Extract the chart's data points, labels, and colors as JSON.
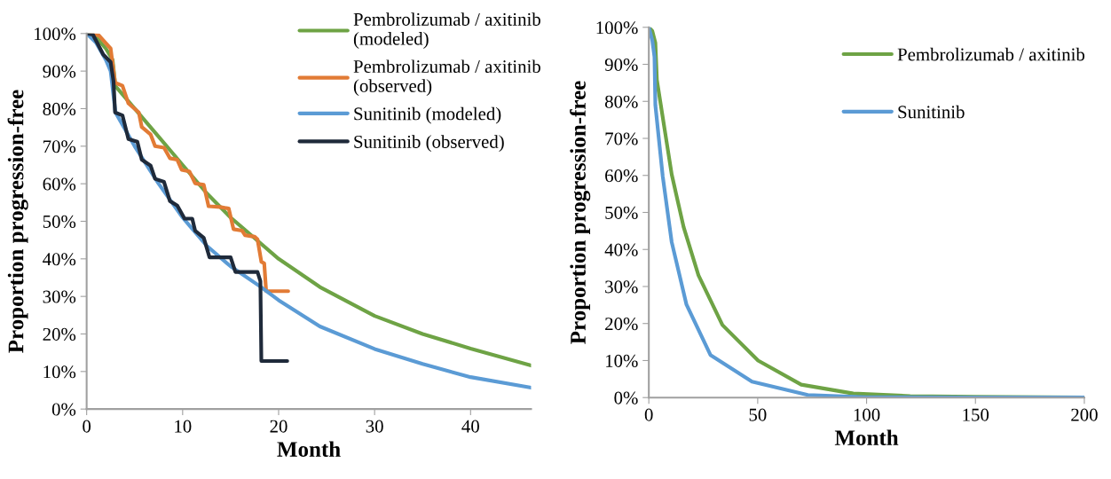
{
  "chart_data": [
    {
      "type": "line",
      "xlabel": "Month",
      "ylabel": "Proportion progression-free",
      "xlim": [
        0,
        46.3
      ],
      "xticks": [
        0,
        10,
        20,
        30,
        40
      ],
      "ylim": [
        0,
        100
      ],
      "yticks": [
        {
          "value": 0,
          "label": "0%"
        },
        {
          "value": 10,
          "label": "10%"
        },
        {
          "value": 20,
          "label": "20%"
        },
        {
          "value": 30,
          "label": "30%"
        },
        {
          "value": 40,
          "label": "40%"
        },
        {
          "value": 50,
          "label": "50%"
        },
        {
          "value": 60,
          "label": "60%"
        },
        {
          "value": 70,
          "label": "70%"
        },
        {
          "value": 80,
          "label": "80%"
        },
        {
          "value": 90,
          "label": "90%"
        },
        {
          "value": 100,
          "label": "100%"
        }
      ],
      "grid": false,
      "legend": "top right",
      "marker": "none",
      "line_style": "solid",
      "series": [
        {
          "name": "Pembrolizumab / axitinib\n(modeled)",
          "color": "#6ea345",
          "x": [
            0,
            1,
            2,
            2.7,
            3,
            5,
            7.5,
            10,
            12.5,
            15,
            17.5,
            20,
            24.3,
            30,
            35,
            40,
            46.3
          ],
          "values": [
            100,
            99,
            96,
            93,
            86,
            80,
            72.5,
            65,
            57.5,
            51,
            45.5,
            40,
            32.5,
            24.8,
            20,
            16.1,
            11.6
          ]
        },
        {
          "name": "Pembrolizumab / axitinib\n(observed)",
          "color": "#e27b35",
          "x": [
            0,
            1.27,
            2.5,
            2.96,
            3.73,
            4.35,
            5.43,
            5.74,
            6.67,
            7.13,
            8.06,
            8.67,
            9.44,
            9.9,
            10.7,
            11.3,
            12.2,
            12.7,
            13.9,
            14.8,
            15.3,
            16.2,
            16.5,
            17.5,
            17.8,
            18.2,
            18.5,
            18.7,
            21.0
          ],
          "values": [
            100,
            99.5,
            96,
            86.9,
            86.1,
            81.4,
            79,
            75.1,
            73.1,
            70,
            69.6,
            66.8,
            66.4,
            63.7,
            63.3,
            60.1,
            59.7,
            54,
            53.8,
            53.4,
            47.9,
            47.5,
            46.3,
            45.9,
            45.2,
            39.2,
            38.8,
            31.4,
            31.4
          ]
        },
        {
          "name": "Sunitinib (modeled)",
          "color": "#5b9bd5",
          "x": [
            0,
            1,
            2,
            2.5,
            3,
            5,
            7.5,
            10,
            12.5,
            15,
            18.1,
            20,
            24.3,
            30,
            35,
            40,
            46.3
          ],
          "values": [
            100,
            97.5,
            93,
            90,
            79,
            70,
            60,
            51,
            43.5,
            38,
            32.6,
            29,
            22,
            16,
            12,
            8.5,
            5.7
          ]
        },
        {
          "name": "Sunitinib (observed)",
          "color": "#1f2a3a",
          "x": [
            0,
            0.65,
            1.73,
            2.5,
            2.8,
            2.96,
            3.73,
            4.35,
            5.28,
            5.74,
            6.67,
            7.13,
            8.06,
            8.67,
            9.44,
            10.2,
            11.0,
            11.3,
            12.2,
            12.8,
            15.0,
            15.5,
            17.8,
            18.1,
            18.2,
            20.9
          ],
          "values": [
            100,
            99.7,
            94.4,
            92.4,
            87.3,
            79,
            78.2,
            71.9,
            71.2,
            66.4,
            64.8,
            61.3,
            60.5,
            55.4,
            54.2,
            50.7,
            50.7,
            47.5,
            45.6,
            40.4,
            40.4,
            36.5,
            36.5,
            34.1,
            12.8,
            12.8
          ]
        }
      ]
    },
    {
      "type": "line",
      "xlabel": "Month",
      "ylabel": "Proportion progression-free",
      "xlim": [
        0,
        200
      ],
      "xticks": [
        0,
        50,
        100,
        150,
        200
      ],
      "ylim": [
        0,
        100
      ],
      "yticks": [
        {
          "value": 0,
          "label": "0%"
        },
        {
          "value": 10,
          "label": "10%"
        },
        {
          "value": 20,
          "label": "20%"
        },
        {
          "value": 30,
          "label": "30%"
        },
        {
          "value": 40,
          "label": "40%"
        },
        {
          "value": 50,
          "label": "50%"
        },
        {
          "value": 60,
          "label": "60%"
        },
        {
          "value": 70,
          "label": "70%"
        },
        {
          "value": 80,
          "label": "80%"
        },
        {
          "value": 90,
          "label": "90%"
        },
        {
          "value": 100,
          "label": "100%"
        }
      ],
      "grid": false,
      "legend": "top right",
      "marker": "none",
      "line_style": "solid",
      "series": [
        {
          "name": "Pembrolizumab / axitinib",
          "color": "#6ea345",
          "x": [
            0,
            1.6,
            3.0,
            3.7,
            10.5,
            16,
            22.8,
            33.8,
            50.2,
            70,
            93.9,
            120,
            150,
            200
          ],
          "values": [
            100,
            99,
            95.8,
            85.8,
            60.3,
            46,
            33,
            19.6,
            10,
            3.5,
            1.1,
            0.4,
            0.2,
            0
          ]
        },
        {
          "name": "Sunitinib",
          "color": "#5b9bd5",
          "x": [
            0,
            1.6,
            2.6,
            3,
            6.4,
            10.5,
            17.3,
            28.3,
            47.4,
            73,
            100,
            150,
            200
          ],
          "values": [
            100,
            96.4,
            92,
            79,
            59.7,
            42,
            25.1,
            11.5,
            4.3,
            0.7,
            0.1,
            0,
            0
          ]
        }
      ]
    }
  ]
}
